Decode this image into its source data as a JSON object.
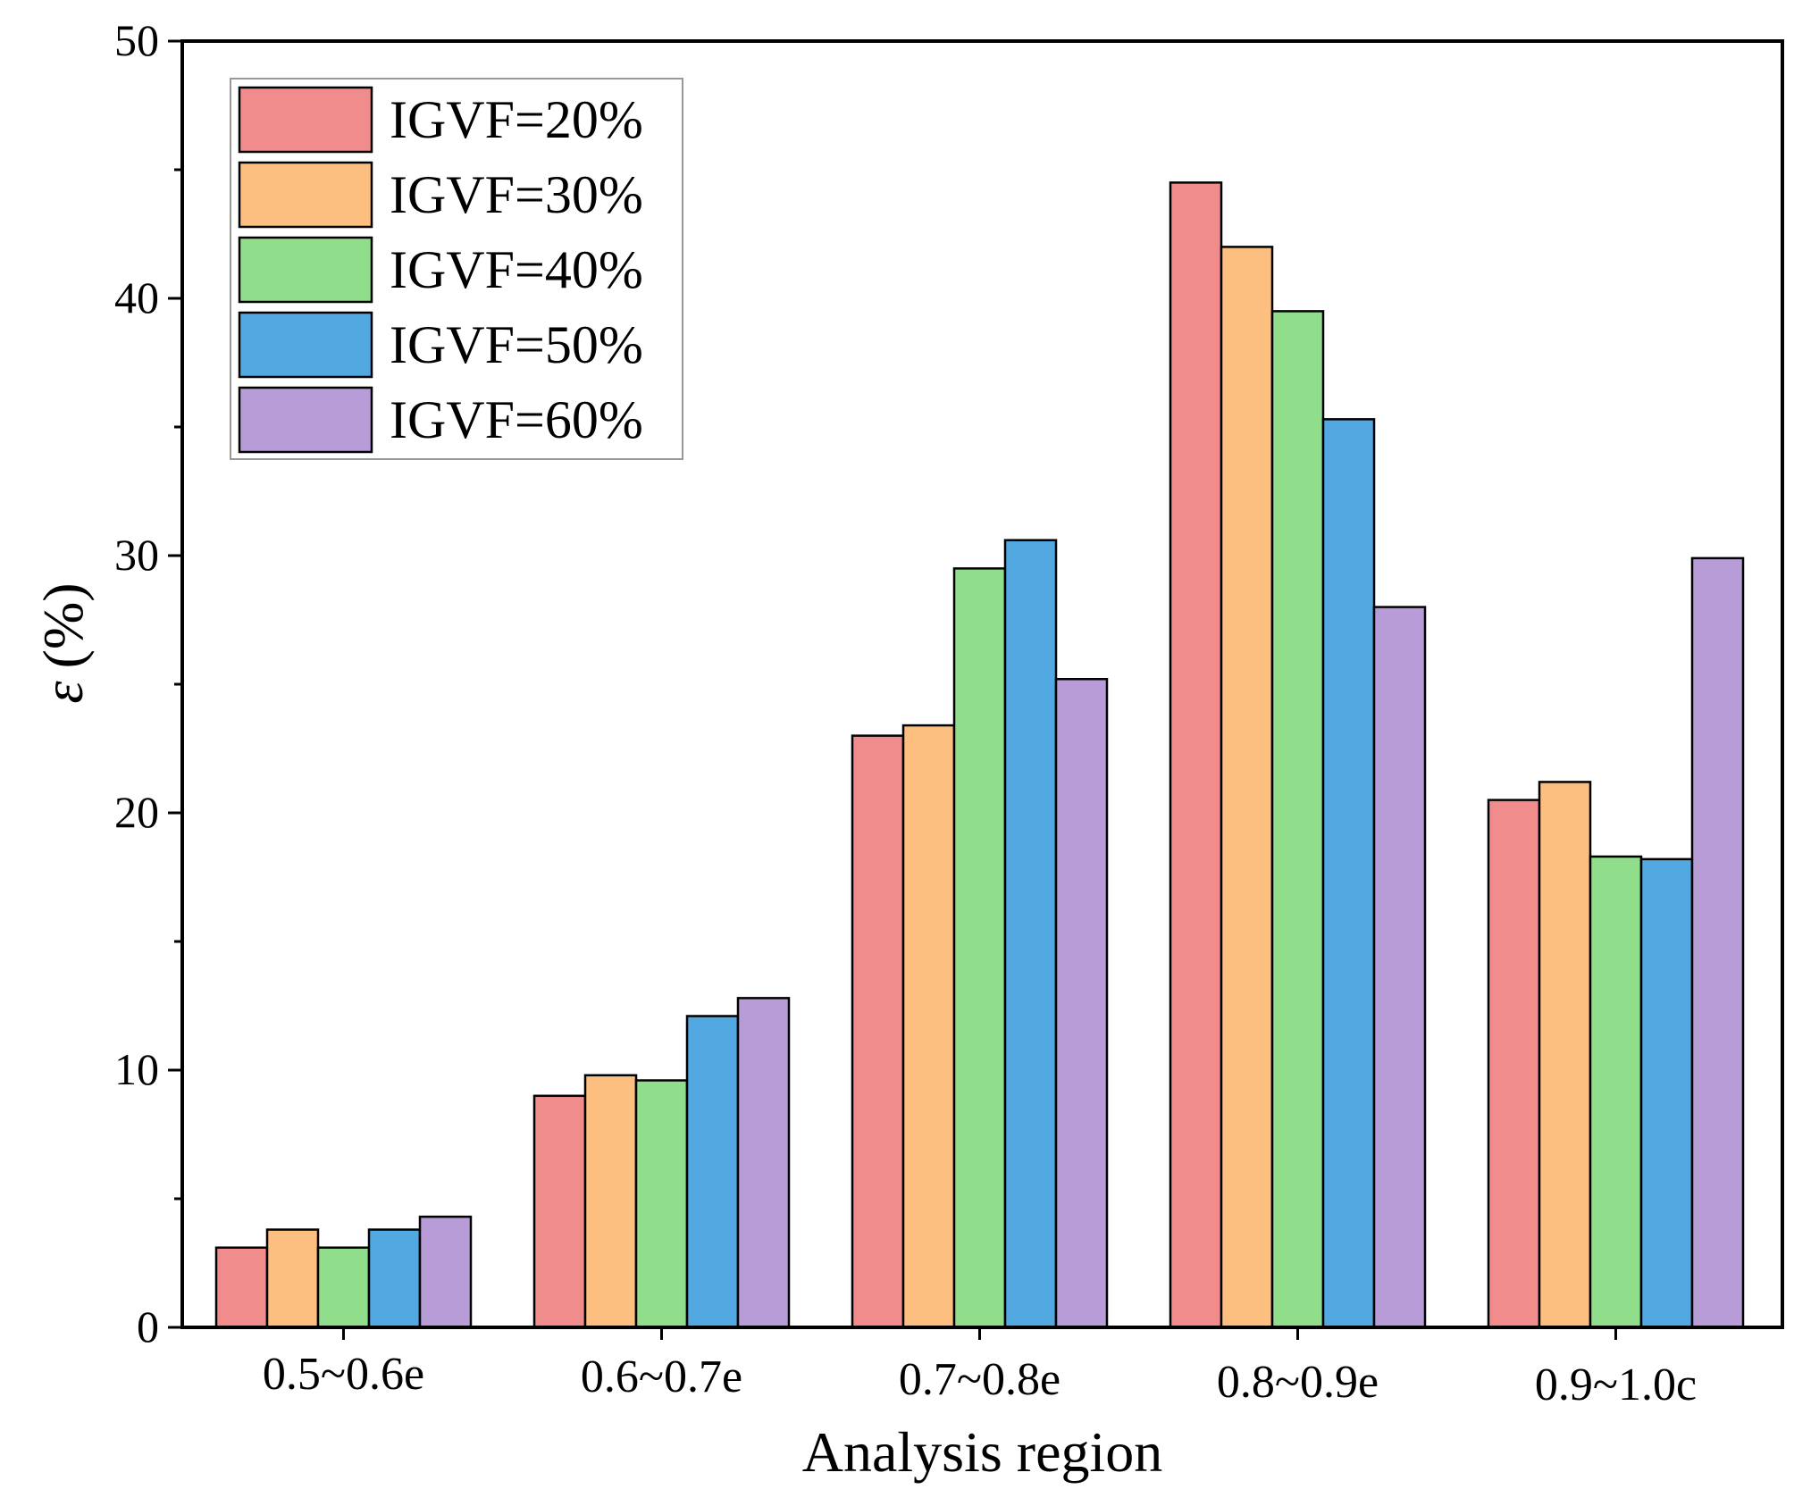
{
  "chart_data": {
    "type": "bar",
    "title": "",
    "xlabel": "Analysis region",
    "ylabel_symbol": "ε",
    "ylabel_unit": "(%)",
    "ylim": [
      0,
      50
    ],
    "yticks": [
      0,
      10,
      20,
      30,
      40,
      50
    ],
    "ytick_labels": [
      "0",
      "10",
      "20",
      "30",
      "40",
      "50"
    ],
    "categories": [
      "0.5~0.6e",
      "0.6~0.7e",
      "0.7~0.8e",
      "0.8~0.9e",
      "0.9~1.0c"
    ],
    "series": [
      {
        "name": "IGVF=20%",
        "color": "#F08C8C",
        "values": [
          3.1,
          9.0,
          23.0,
          44.5,
          20.5
        ]
      },
      {
        "name": "IGVF=30%",
        "color": "#FDBF80",
        "values": [
          3.8,
          9.8,
          23.4,
          42.0,
          21.2
        ]
      },
      {
        "name": "IGVF=40%",
        "color": "#90DE8C",
        "values": [
          3.1,
          9.6,
          29.5,
          39.5,
          18.3
        ]
      },
      {
        "name": "IGVF=50%",
        "color": "#52A8E0",
        "values": [
          3.8,
          12.1,
          30.6,
          35.3,
          18.2
        ]
      },
      {
        "name": "IGVF=60%",
        "color": "#B89CD8",
        "values": [
          4.3,
          12.8,
          25.2,
          28.0,
          29.9
        ]
      }
    ],
    "legend_position": "top-left",
    "grid": false
  }
}
